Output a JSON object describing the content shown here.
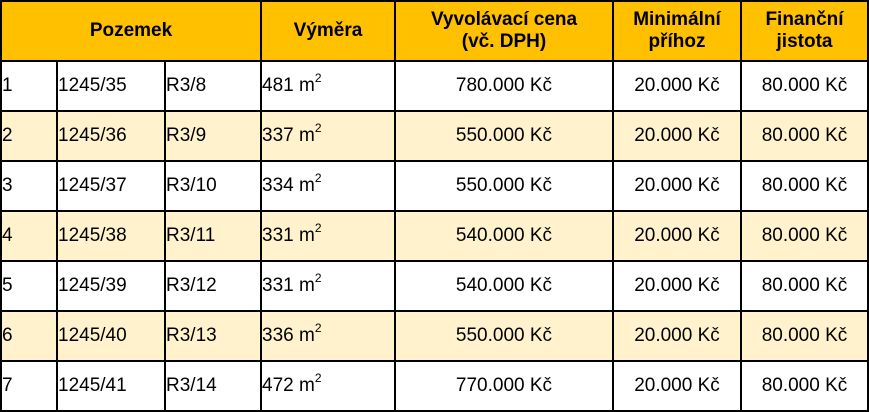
{
  "table": {
    "headers": {
      "plot": "Pozemek",
      "area": "Výměra",
      "price": [
        "Vyvolávací cena",
        "(vč. DPH)"
      ],
      "min_bid": [
        "Minimální",
        "příhoz"
      ],
      "deposit": [
        "Finanční",
        "jistota"
      ]
    },
    "area_unit": "m",
    "area_exponent": "2",
    "colors": {
      "header_bg": "#ffc000",
      "stripe_bg": "#fff2cc",
      "border": "#000000"
    },
    "rows": [
      {
        "num": "1",
        "parcel": "1245/35",
        "code": "R3/8",
        "area": "481",
        "price": "780.000 Kč",
        "min_bid": "20.000 Kč",
        "deposit": "80.000 Kč"
      },
      {
        "num": "2",
        "parcel": "1245/36",
        "code": "R3/9",
        "area": "337",
        "price": "550.000 Kč",
        "min_bid": "20.000 Kč",
        "deposit": "80.000 Kč"
      },
      {
        "num": "3",
        "parcel": "1245/37",
        "code": "R3/10",
        "area": "334",
        "price": "550.000 Kč",
        "min_bid": "20.000 Kč",
        "deposit": "80.000 Kč"
      },
      {
        "num": "4",
        "parcel": "1245/38",
        "code": "R3/11",
        "area": "331",
        "price": "540.000 Kč",
        "min_bid": "20.000 Kč",
        "deposit": "80.000 Kč"
      },
      {
        "num": "5",
        "parcel": "1245/39",
        "code": "R3/12",
        "area": "331",
        "price": "540.000 Kč",
        "min_bid": "20.000 Kč",
        "deposit": "80.000 Kč"
      },
      {
        "num": "6",
        "parcel": "1245/40",
        "code": "R3/13",
        "area": "336",
        "price": "550.000 Kč",
        "min_bid": "20.000 Kč",
        "deposit": "80.000 Kč"
      },
      {
        "num": "7",
        "parcel": "1245/41",
        "code": "R3/14",
        "area": "472",
        "price": "770.000 Kč",
        "min_bid": "20.000 Kč",
        "deposit": "80.000 Kč"
      }
    ]
  }
}
